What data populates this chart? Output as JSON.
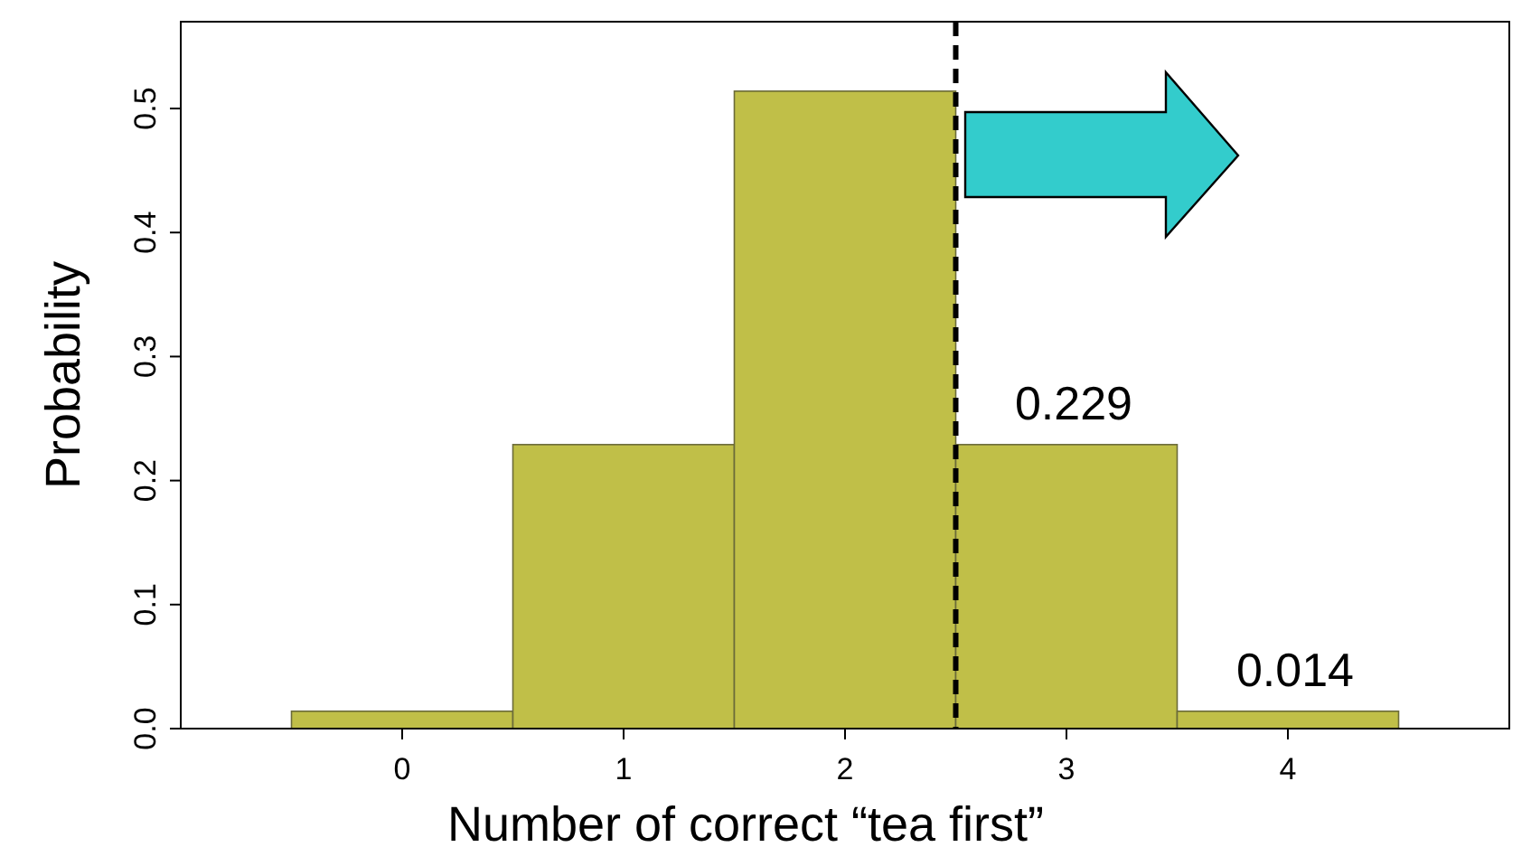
{
  "chart_data": {
    "type": "histogram",
    "xlabel": "Number of correct “tea first”",
    "ylabel": "Probability",
    "bins": [
      -0.5,
      0.5,
      1.5,
      2.5,
      3.5,
      4.5
    ],
    "values": [
      0.014,
      0.229,
      0.514,
      0.229,
      0.014
    ],
    "value_labels": [
      null,
      null,
      null,
      "0.229",
      "0.014"
    ],
    "color": "#c0bf48",
    "xlim": [
      -1,
      5
    ],
    "xticks": [
      0,
      1,
      2,
      3,
      4
    ],
    "ylim": [
      0,
      0.57
    ],
    "yticks": [
      {
        "value": 0,
        "label": "0.0"
      },
      0.1,
      0.2,
      0.3,
      0.4,
      0.5
    ],
    "ref_lines": [
      {
        "axis": "x",
        "value": 2.5,
        "color": "#000000",
        "line_style": "dashed"
      }
    ],
    "grid": false
  }
}
